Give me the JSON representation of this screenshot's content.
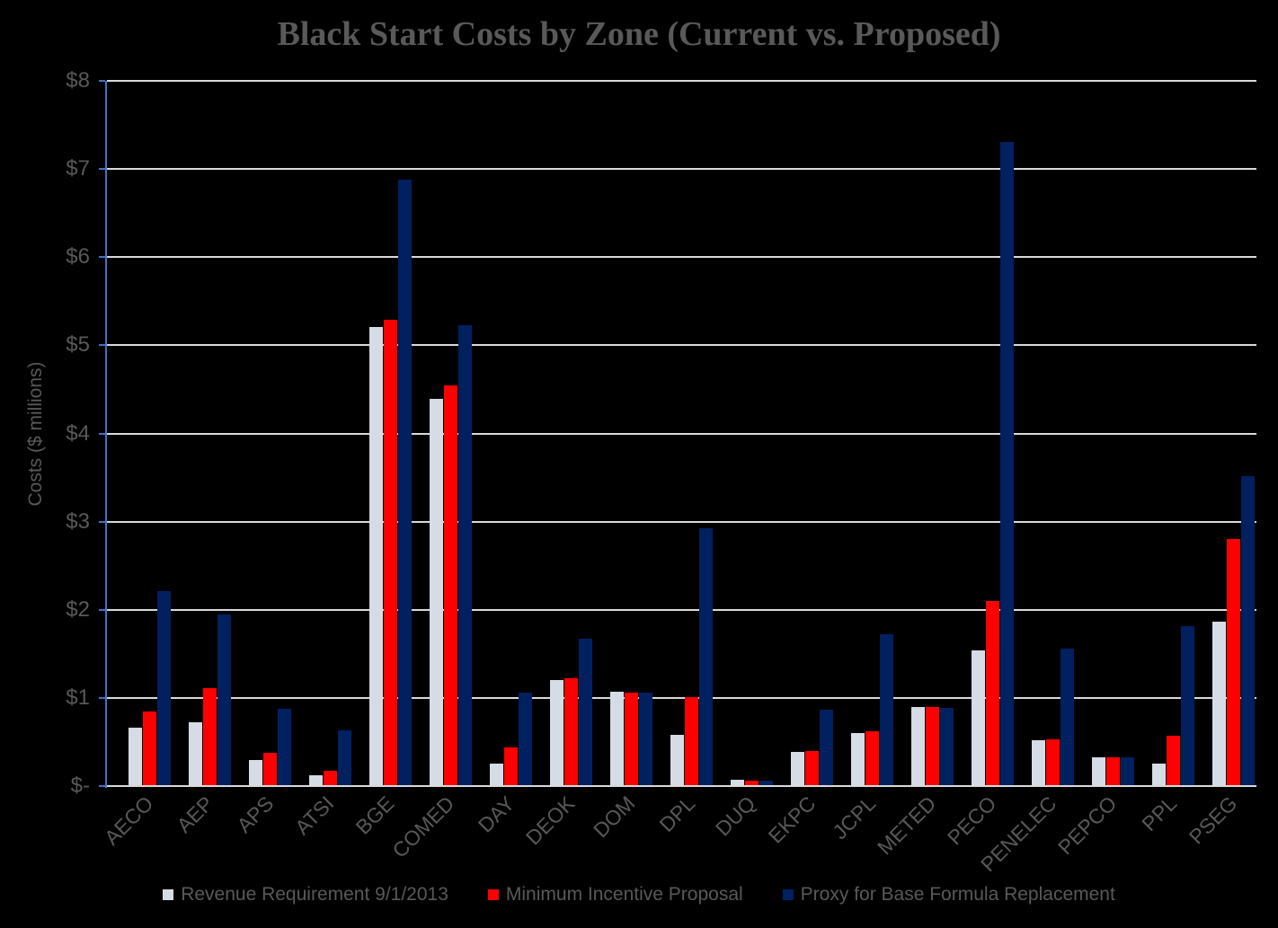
{
  "chart_data": {
    "type": "bar",
    "title": "Black Start Costs by Zone (Current vs. Proposed)",
    "xlabel": "",
    "ylabel": "Costs ($ millions)",
    "ylim": [
      0,
      8
    ],
    "grid": true,
    "legend_position": "bottom",
    "ytick_labels": [
      "$-",
      "$1",
      "$2",
      "$3",
      "$4",
      "$5",
      "$6",
      "$7",
      "$8"
    ],
    "categories": [
      "AECO",
      "AEP",
      "APS",
      "ATSI",
      "BGE",
      "COMED",
      "DAY",
      "DEOK",
      "DOM",
      "DPL",
      "DUQ",
      "EKPC",
      "JCPL",
      "METED",
      "PECO",
      "PENELEC",
      "PEPCO",
      "PPL",
      "PSEG"
    ],
    "series": [
      {
        "name": "Revenue Requirement 9/1/2013",
        "color": "#d6dce5",
        "values": [
          0.66,
          0.72,
          0.3,
          0.12,
          5.21,
          4.39,
          0.25,
          1.2,
          1.07,
          0.58,
          0.07,
          0.39,
          0.6,
          0.9,
          1.54,
          0.52,
          0.33,
          0.25,
          1.87
        ]
      },
      {
        "name": "Minimum Incentive Proposal",
        "color": "#ff0000",
        "values": [
          0.85,
          1.11,
          0.38,
          0.17,
          5.29,
          4.55,
          0.44,
          1.22,
          1.06,
          1.01,
          0.06,
          0.4,
          0.62,
          0.9,
          2.1,
          0.53,
          0.33,
          0.57,
          2.8
        ]
      },
      {
        "name": "Proxy for Base Formula Replacement",
        "color": "#002060",
        "values": [
          2.21,
          1.95,
          0.88,
          0.63,
          6.88,
          5.23,
          1.06,
          1.67,
          1.06,
          2.92,
          0.06,
          0.87,
          1.72,
          0.89,
          7.31,
          1.56,
          0.33,
          1.81,
          3.52
        ]
      }
    ]
  },
  "colors": {
    "background": "#000000",
    "gridline": "#d9d9d9",
    "axis_line": "#4472c4",
    "label_text": "#595959",
    "title_text": "#595959"
  }
}
